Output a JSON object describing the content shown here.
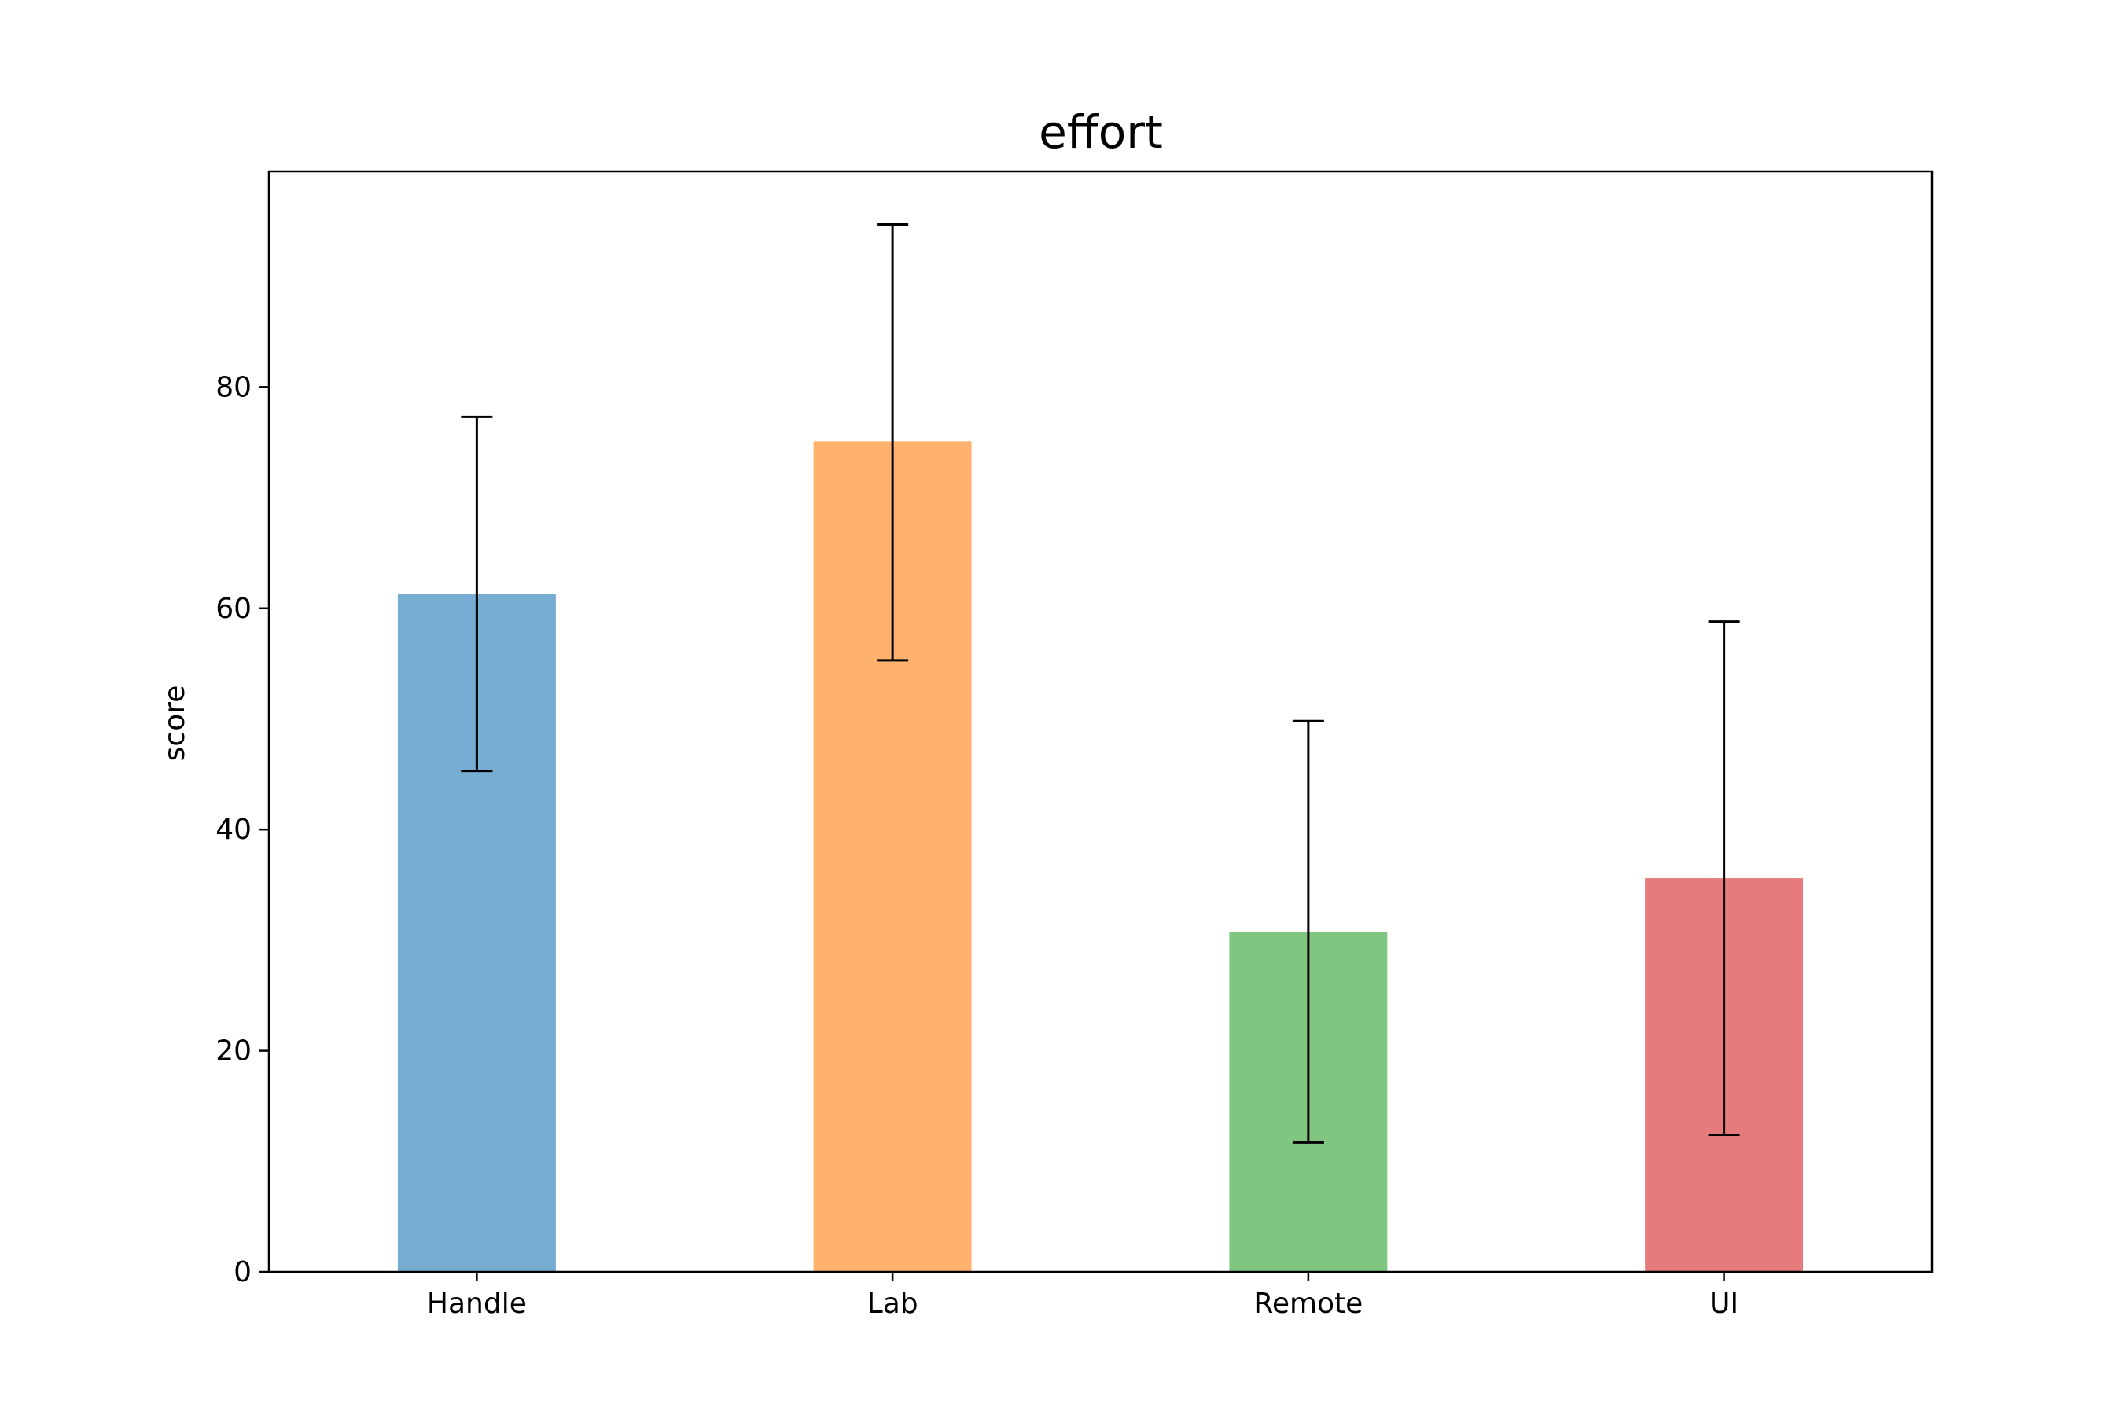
{
  "chart_data": {
    "type": "bar",
    "title": "effort",
    "xlabel": "",
    "ylabel": "score",
    "categories": [
      "Handle",
      "Lab",
      "Remote",
      "UI"
    ],
    "values": [
      61.3,
      75.1,
      30.7,
      35.6
    ],
    "error_low": [
      45.3,
      55.3,
      11.7,
      12.4
    ],
    "error_high": [
      77.3,
      94.7,
      49.8,
      58.8
    ],
    "colors": [
      "#77acd3",
      "#ffb26e",
      "#80c680",
      "#e57b7b"
    ],
    "ylim": [
      0,
      99.5
    ],
    "yticks": [
      0,
      20,
      40,
      60,
      80
    ],
    "grid": false,
    "legend": false
  }
}
